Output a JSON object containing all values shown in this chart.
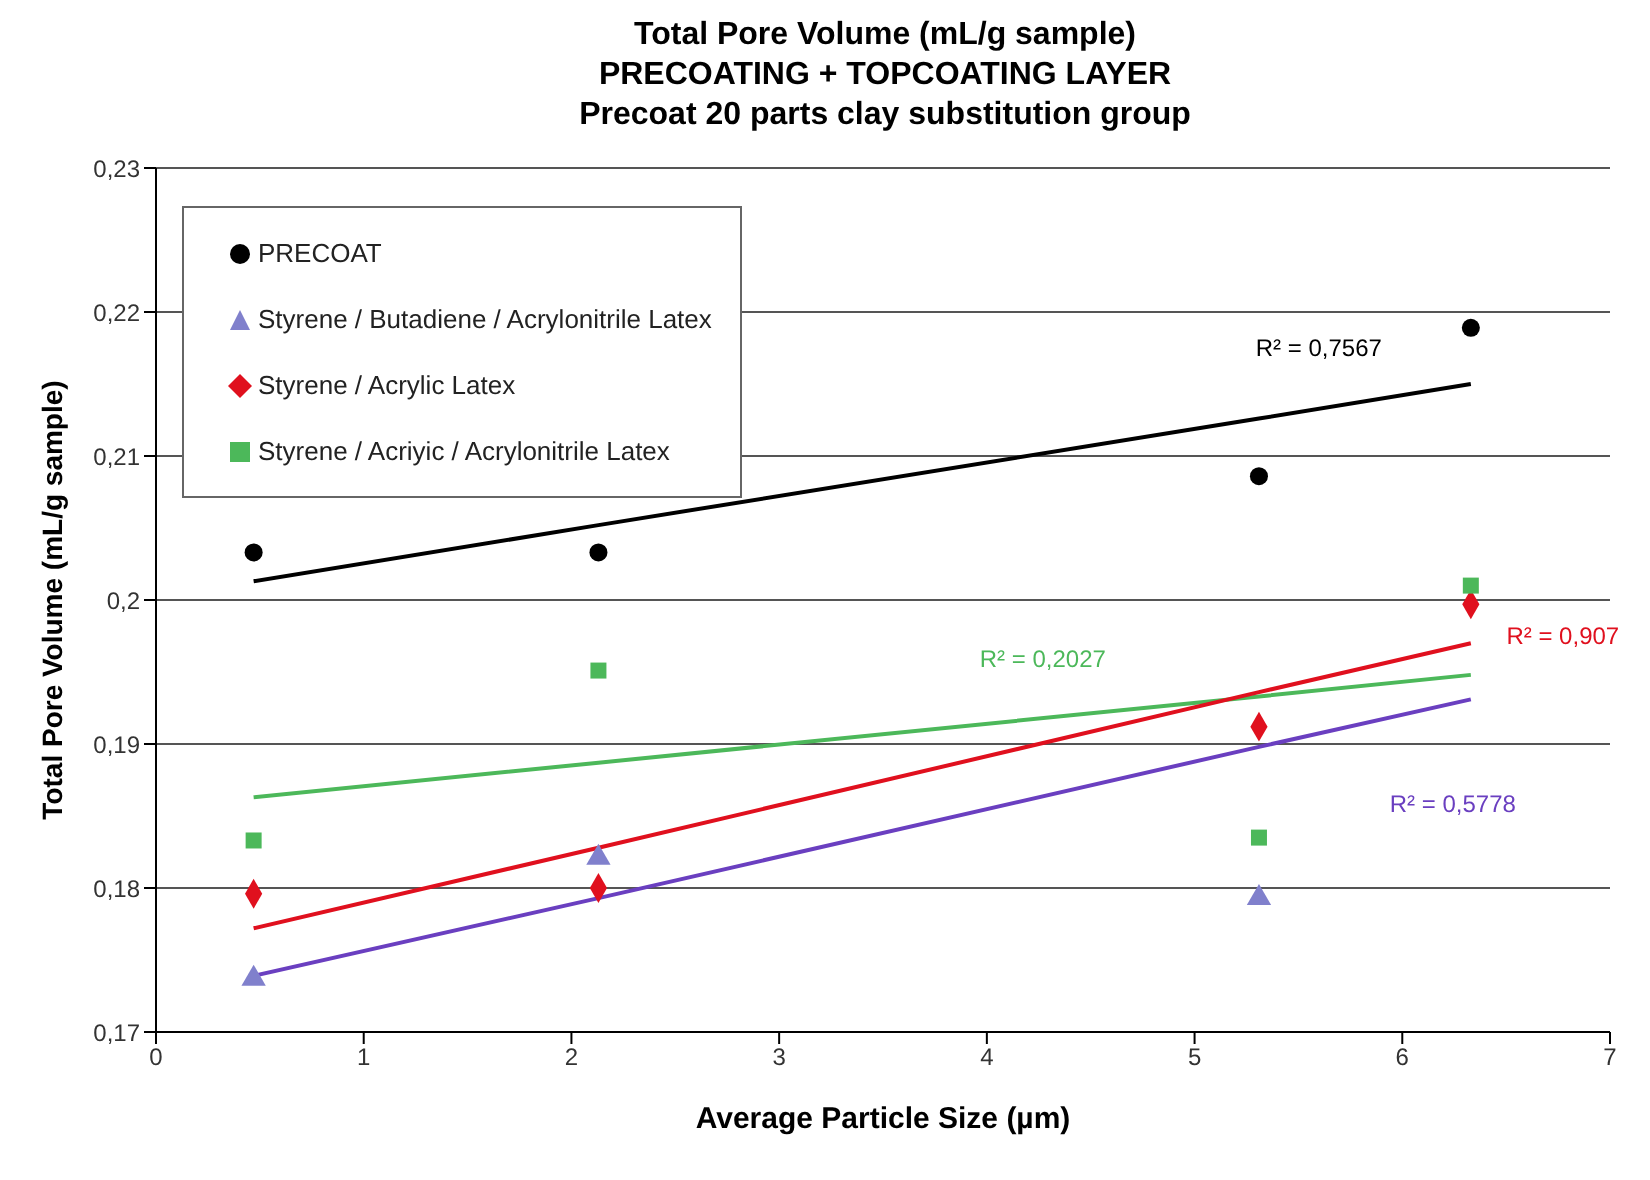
{
  "chart_data": {
    "type": "scatter",
    "title": "Total Pore Volume (mL/g sample)\nPRECOATING + TOPCOATING LAYER\nPrecoat 20 parts clay substitution group",
    "xlabel": "Average Particle Size (µm)",
    "ylabel": "Total Pore Volume (mL/g sample)",
    "x": [
      0.47,
      2.13,
      5.31,
      6.33
    ],
    "series": [
      {
        "name": "PRECOAT",
        "color": "#000000",
        "marker": "circle",
        "values": [
          0.2033,
          0.2033,
          0.2086,
          0.2189
        ]
      },
      {
        "name": "Styrene / Butadiene / Acrylonitrile Latex",
        "color": "#8080cc",
        "marker": "triangle",
        "values": [
          0.1737,
          0.1821,
          0.1793,
          null
        ]
      },
      {
        "name": "Styrene / Acrylic Latex",
        "color": "#e0101e",
        "marker": "diamond",
        "values": [
          0.1796,
          0.18,
          0.1912,
          0.1997
        ]
      },
      {
        "name": "Styrene / Acriyic / Acrylonitrile Latex",
        "color": "#4cb85a",
        "marker": "square",
        "values": [
          0.1833,
          0.1951,
          0.1835,
          0.201
        ]
      },
      {
        "type": "line",
        "color": "#000000",
        "values": [
          0.2013,
          0.2052,
          0.2126,
          0.215
        ]
      },
      {
        "type": "line",
        "color": "#4cb85a",
        "values": [
          0.1863,
          0.1887,
          0.1933,
          0.1948
        ]
      },
      {
        "type": "line",
        "color": "#e0101e",
        "values": [
          0.1772,
          0.1828,
          0.1936,
          0.197
        ]
      },
      {
        "type": "line",
        "color": "#6a3fc0",
        "values": [
          0.1739,
          0.1793,
          0.1898,
          0.1931
        ]
      }
    ],
    "annotations": [
      "R² = 0,7567",
      "R² = 0,2027",
      "R² = 0,907",
      "R² = 0,5778"
    ],
    "xlim": [
      0,
      7
    ],
    "xticks": [
      0,
      1,
      2,
      3,
      4,
      5,
      6,
      7
    ],
    "ylim": [
      0.17,
      0.23
    ],
    "yticks": [
      {
        "value": 0.17,
        "label": "0,17"
      },
      {
        "value": 0.18,
        "label": "0,18"
      },
      {
        "value": 0.19,
        "label": "0,19"
      },
      {
        "value": 0.2,
        "label": "0,2"
      },
      {
        "value": 0.21,
        "label": "0,21"
      },
      {
        "value": 0.22,
        "label": "0,22"
      },
      {
        "value": 0.23,
        "label": "0,23"
      }
    ],
    "grid": "y",
    "legend": "top left"
  }
}
